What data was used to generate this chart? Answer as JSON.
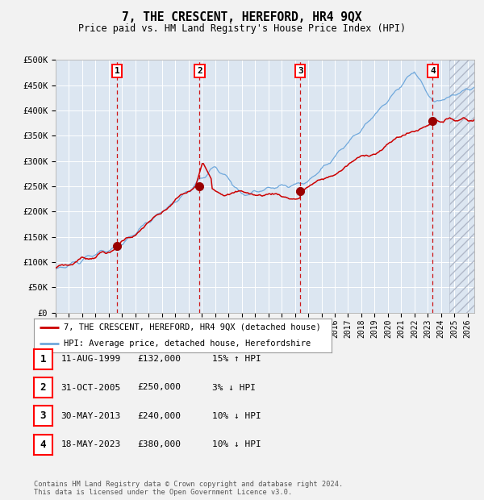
{
  "title": "7, THE CRESCENT, HEREFORD, HR4 9QX",
  "subtitle": "Price paid vs. HM Land Registry's House Price Index (HPI)",
  "ylim": [
    0,
    500000
  ],
  "yticks": [
    0,
    50000,
    100000,
    150000,
    200000,
    250000,
    300000,
    350000,
    400000,
    450000,
    500000
  ],
  "ytick_labels": [
    "£0",
    "£50K",
    "£100K",
    "£150K",
    "£200K",
    "£250K",
    "£300K",
    "£350K",
    "£400K",
    "£450K",
    "£500K"
  ],
  "xlim_start": 1995.0,
  "xlim_end": 2026.5,
  "xticks": [
    1995,
    1996,
    1997,
    1998,
    1999,
    2000,
    2001,
    2002,
    2003,
    2004,
    2005,
    2006,
    2007,
    2008,
    2009,
    2010,
    2011,
    2012,
    2013,
    2014,
    2015,
    2016,
    2017,
    2018,
    2019,
    2020,
    2021,
    2022,
    2023,
    2024,
    2025,
    2026
  ],
  "background_color": "#dce6f1",
  "fig_bg_color": "#f2f2f2",
  "hpi_line_color": "#6fa8dc",
  "price_line_color": "#cc0000",
  "marker_color": "#990000",
  "dashed_line_color": "#cc0000",
  "sale_points": [
    {
      "year": 1999.61,
      "price": 132000,
      "label": "1"
    },
    {
      "year": 2005.83,
      "price": 250000,
      "label": "2"
    },
    {
      "year": 2013.41,
      "price": 240000,
      "label": "3"
    },
    {
      "year": 2023.37,
      "price": 380000,
      "label": "4"
    }
  ],
  "legend_price_label": "7, THE CRESCENT, HEREFORD, HR4 9QX (detached house)",
  "legend_hpi_label": "HPI: Average price, detached house, Herefordshire",
  "table_rows": [
    {
      "num": "1",
      "date": "11-AUG-1999",
      "price": "£132,000",
      "pct": "15% ↑ HPI"
    },
    {
      "num": "2",
      "date": "31-OCT-2005",
      "price": "£250,000",
      "pct": "3% ↓ HPI"
    },
    {
      "num": "3",
      "date": "30-MAY-2013",
      "price": "£240,000",
      "pct": "10% ↓ HPI"
    },
    {
      "num": "4",
      "date": "18-MAY-2023",
      "price": "£380,000",
      "pct": "10% ↓ HPI"
    }
  ],
  "footnote": "Contains HM Land Registry data © Crown copyright and database right 2024.\nThis data is licensed under the Open Government Licence v3.0."
}
